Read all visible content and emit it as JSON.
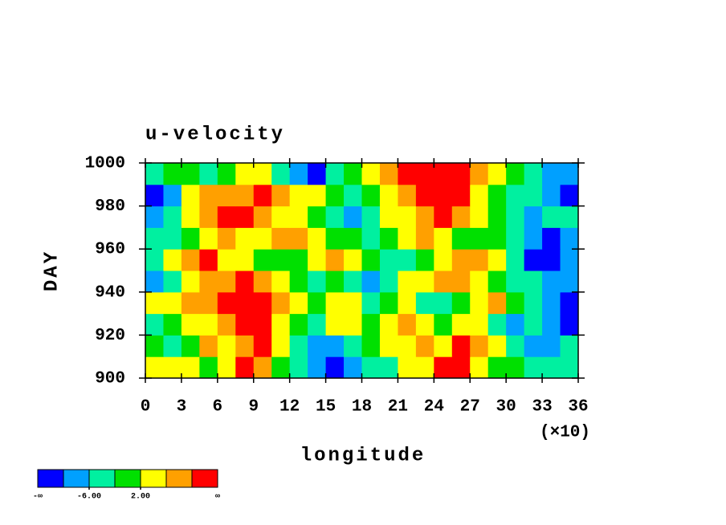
{
  "chart_data": {
    "type": "heatmap",
    "title": "u-velocity",
    "x_label": "longitude",
    "y_label": "DAY",
    "x_multiplier": "(×10)",
    "xlim": [
      0,
      36
    ],
    "xticks": [
      0,
      3,
      6,
      9,
      12,
      15,
      18,
      21,
      24,
      27,
      30,
      33,
      36
    ],
    "ylim": [
      900,
      1000
    ],
    "yticks": [
      900,
      920,
      940,
      960,
      980,
      1000
    ],
    "levels": [
      -10,
      -6,
      -2,
      2,
      6,
      10
    ],
    "colors": [
      "#0000ff",
      "#00a0ff",
      "#00f0a0",
      "#00e000",
      "#ffff00",
      "#ffa000",
      "#ff0000"
    ],
    "colorbar": {
      "low_label": "-∞",
      "high_label": "∞",
      "ticks": [
        {
          "value": -6,
          "label": "-6.00"
        },
        {
          "value": 2,
          "label": "2.00"
        }
      ]
    },
    "z": [
      [
        4,
        3,
        2,
        -1,
        5,
        12,
        8,
        0,
        -4,
        -8,
        -11,
        -9,
        -6,
        -3,
        2,
        4,
        12,
        11,
        3,
        0,
        -2,
        -4,
        -6,
        -3
      ],
      [
        -2,
        -5,
        0,
        6,
        4,
        7,
        11,
        3,
        -3,
        -7,
        -10,
        -5,
        0,
        3,
        5,
        8,
        4,
        10,
        7,
        2,
        -3,
        -7,
        -9,
        -5
      ],
      [
        -4,
        -1,
        3,
        5,
        8,
        12,
        10,
        5,
        -2,
        -5,
        2,
        4,
        -1,
        3,
        6,
        2,
        -2,
        5,
        4,
        -3,
        -8,
        -4,
        -9,
        -11
      ],
      [
        3,
        5,
        6,
        8,
        10,
        13,
        12,
        7,
        4,
        1,
        5,
        3,
        -3,
        0,
        2,
        -4,
        -6,
        -1,
        3,
        6,
        1,
        -5,
        -8,
        -12
      ],
      [
        -8,
        -5,
        4,
        7,
        6,
        11,
        9,
        4,
        -2,
        -4,
        0,
        -6,
        -9,
        -3,
        2,
        5,
        9,
        6,
        3,
        -1,
        -4,
        -6,
        -10,
        -8
      ],
      [
        -3,
        2,
        7,
        10,
        5,
        3,
        1,
        -2,
        0,
        3,
        6,
        4,
        -1,
        -3,
        -5,
        -2,
        3,
        8,
        7,
        4,
        -6,
        -11,
        -13,
        -7
      ],
      [
        -6,
        -3,
        1,
        4,
        7,
        5,
        3,
        6,
        9,
        4,
        1,
        -2,
        -4,
        -1,
        3,
        6,
        4,
        0,
        -2,
        1,
        -4,
        -9,
        -12,
        -10
      ],
      [
        -9,
        -4,
        5,
        8,
        12,
        11,
        9,
        5,
        2,
        -1,
        -6,
        -10,
        -3,
        2,
        5,
        9,
        11,
        6,
        3,
        -2,
        -5,
        -8,
        -6,
        -4
      ],
      [
        -11,
        -7,
        2,
        6,
        8,
        7,
        12,
        9,
        4,
        3,
        -2,
        -5,
        0,
        4,
        9,
        12,
        13,
        10,
        5,
        1,
        -3,
        -6,
        -9,
        -12
      ],
      [
        -5,
        -2,
        1,
        -3,
        -1,
        4,
        2,
        -4,
        -8,
        -11,
        -6,
        -2,
        3,
        7,
        10,
        12,
        14,
        11,
        6,
        2,
        -1,
        -4,
        -7,
        -9
      ]
    ]
  }
}
